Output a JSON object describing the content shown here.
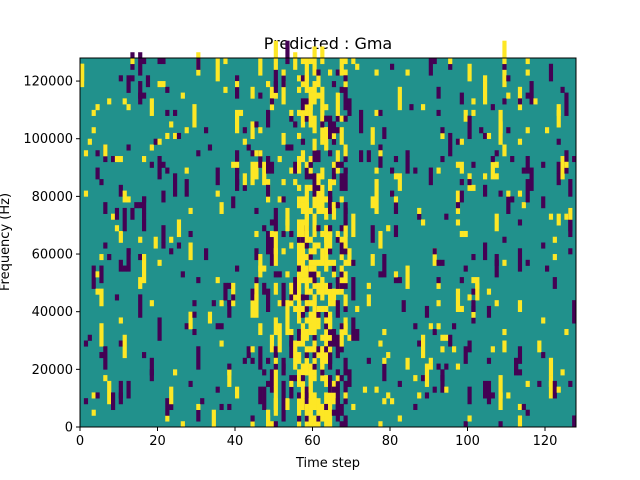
{
  "chart_data": {
    "type": "heatmap",
    "title": "Predicted : Gma",
    "xlabel": "Time step",
    "ylabel": "Frequency (Hz)",
    "xlim": [
      0,
      128
    ],
    "ylim": [
      0,
      128000
    ],
    "xticks": [
      0,
      20,
      40,
      60,
      80,
      100,
      120
    ],
    "yticks": [
      0,
      20000,
      40000,
      60000,
      80000,
      100000,
      120000
    ],
    "n_time_steps": 128,
    "n_freq_bins": 64,
    "levels": [
      -1,
      0,
      1
    ],
    "colors": {
      "low": "#440154",
      "mid": "#21918c",
      "high": "#fde725"
    },
    "grid": false,
    "legend": "none"
  }
}
